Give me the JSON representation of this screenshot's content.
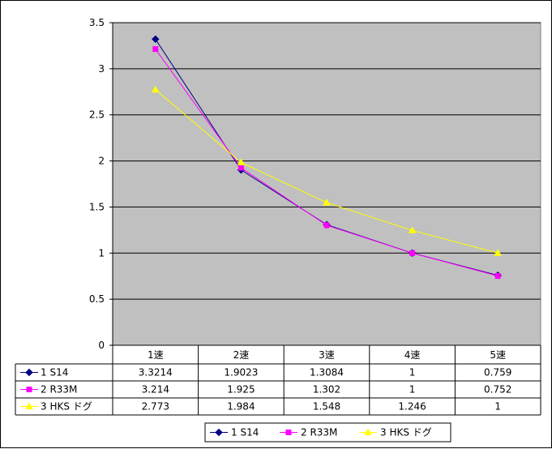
{
  "chart_data": {
    "type": "line",
    "categories": [
      "1速",
      "2速",
      "3速",
      "4速",
      "5速"
    ],
    "series": [
      {
        "name": "1 S14",
        "values": [
          3.3214,
          1.9023,
          1.3084,
          1,
          0.759
        ],
        "labels": [
          "3.3214",
          "1.9023",
          "1.3084",
          "1",
          "0.759"
        ],
        "color": "#000080",
        "marker": "diamond"
      },
      {
        "name": "2 R33M",
        "values": [
          3.214,
          1.925,
          1.302,
          1,
          0.752
        ],
        "labels": [
          "3.214",
          "1.925",
          "1.302",
          "1",
          "0.752"
        ],
        "color": "#ff00ff",
        "marker": "square"
      },
      {
        "name": "3 HKS ドグ",
        "values": [
          2.773,
          1.984,
          1.548,
          1.246,
          1
        ],
        "labels": [
          "2.773",
          "1.984",
          "1.548",
          "1.246",
          "1"
        ],
        "color": "#ffff00",
        "marker": "triangle"
      }
    ],
    "y_ticks": [
      "0",
      "0.5",
      "1",
      "1.5",
      "2",
      "2.5",
      "3",
      "3.5"
    ],
    "ylim": [
      0,
      3.5
    ],
    "grid": true,
    "plot_background": "#c0c0c0",
    "data_table": true,
    "legend": "bottom"
  }
}
